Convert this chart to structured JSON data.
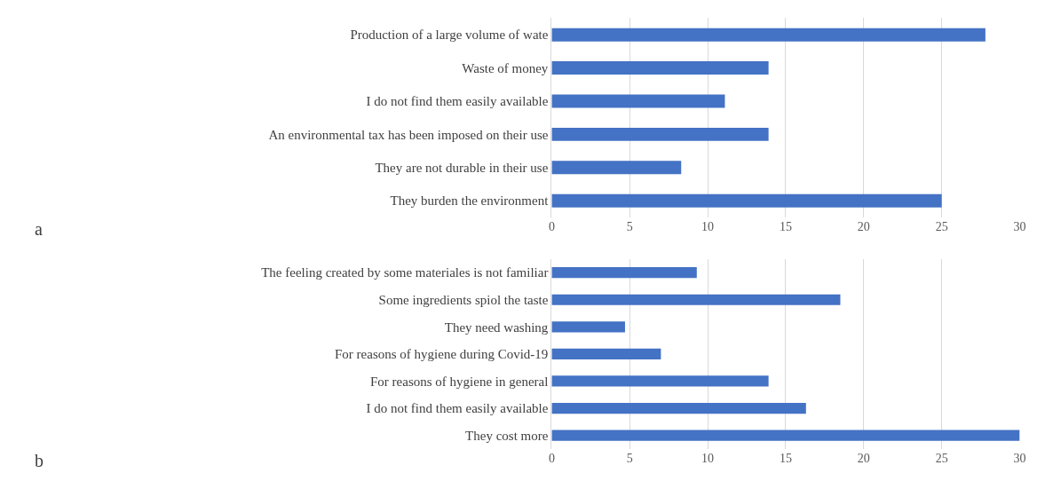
{
  "chart_data": [
    {
      "type": "bar",
      "orientation": "horizontal",
      "categories": [
        "Production of a large volume of wate",
        "Waste of money",
        "I do not find them easily available",
        "An environmental tax has been imposed on their use",
        "They are not durable in their use",
        "They burden the environment"
      ],
      "values": [
        27.8,
        13.9,
        11.1,
        13.9,
        8.3,
        25.0
      ],
      "color": "#4472c4",
      "xlim": [
        0,
        30
      ],
      "xticks": [
        0,
        5,
        10,
        15,
        20,
        25,
        30
      ],
      "grid": "x",
      "annotations": [
        "a"
      ]
    },
    {
      "type": "bar",
      "orientation": "horizontal",
      "categories": [
        "The feeling created by some materiales is not familiar",
        "Some ingredients spiol the taste",
        "They need washing",
        "For reasons of hygiene during Covid-19",
        "For reasons of hygiene in general",
        "I do not find them easily available",
        "They cost more"
      ],
      "values": [
        9.3,
        18.5,
        4.7,
        7.0,
        13.9,
        16.3,
        30.0
      ],
      "color": "#4472c4",
      "xlim": [
        0,
        30
      ],
      "xticks": [
        0,
        5,
        10,
        15,
        20,
        25,
        30
      ],
      "grid": "x",
      "annotations": [
        "b"
      ]
    }
  ]
}
